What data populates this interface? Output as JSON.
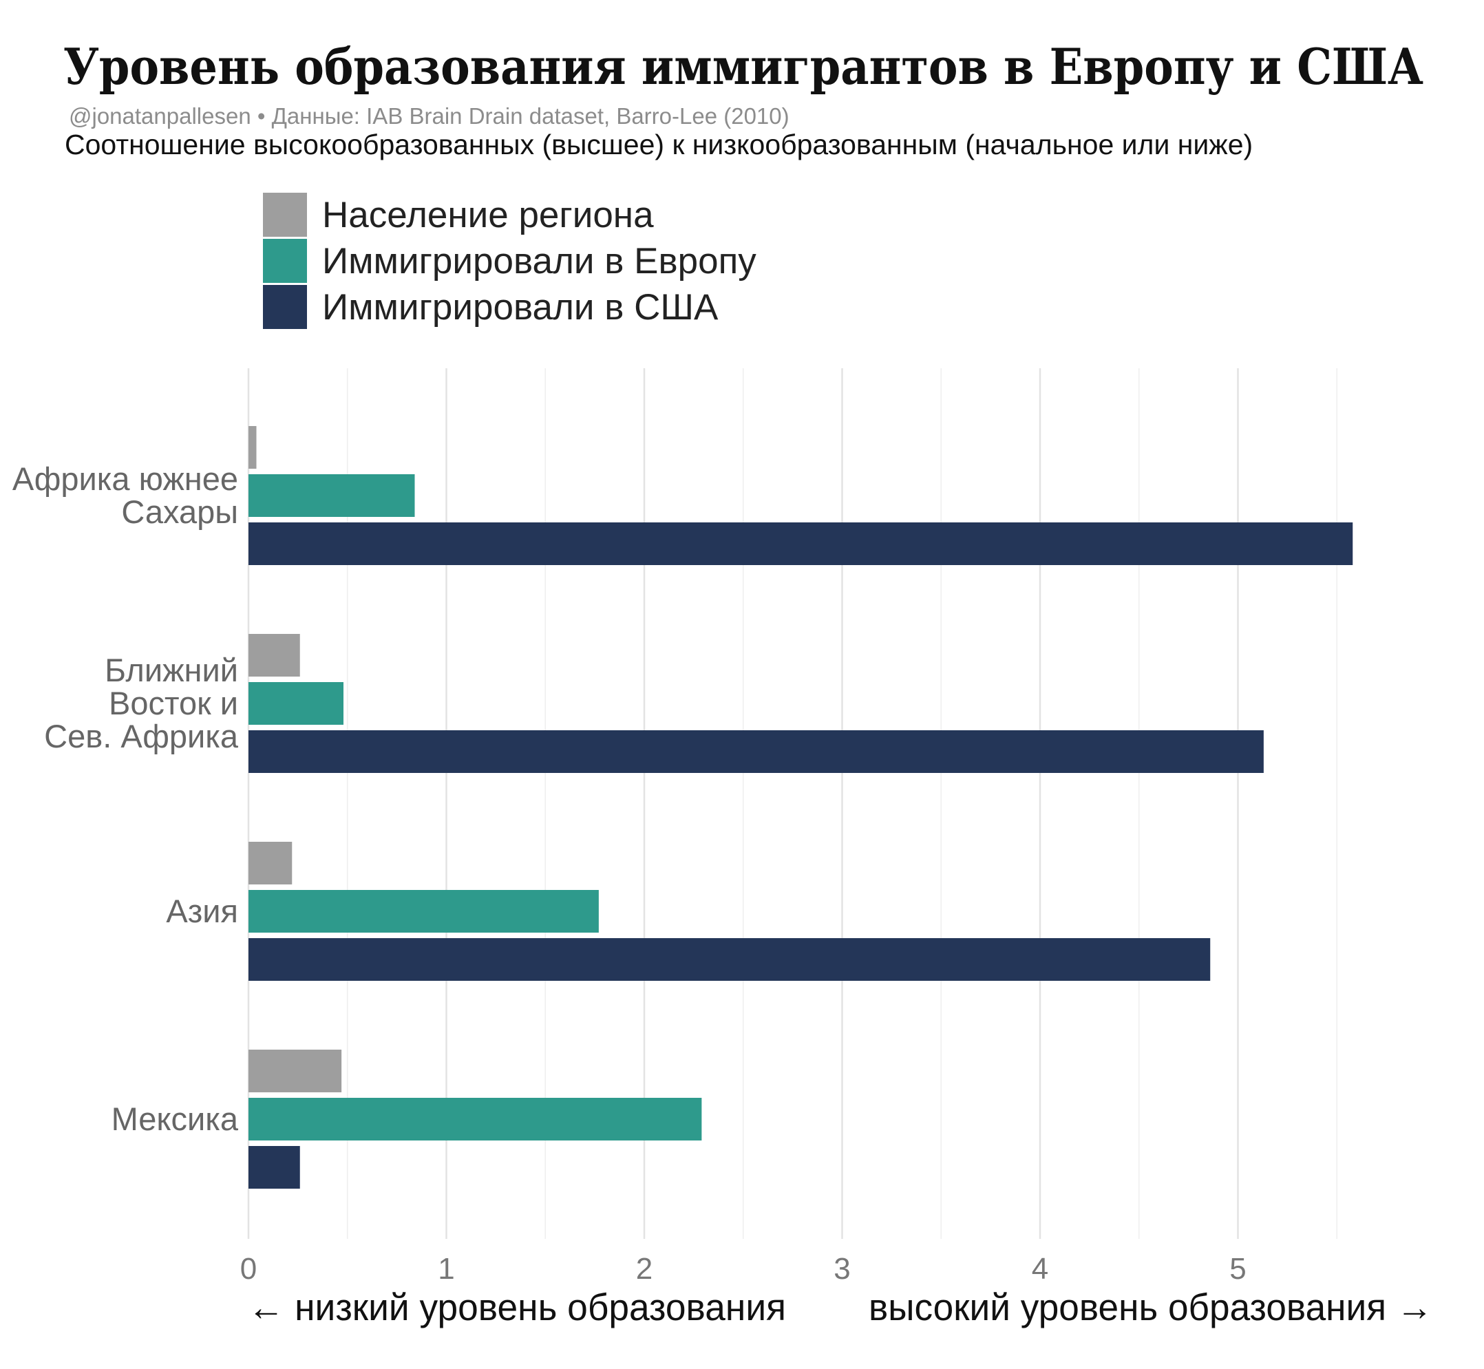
{
  "title": "Уровень образования иммигрантов в Европу и США",
  "caption": "@jonatanpallesen • Данные: IAB Brain Drain dataset, Barro-Lee (2010)",
  "subtitle": "Соотношение высокообразованных (высшее) к низкообразованным (начальное или ниже)",
  "axis_notes": {
    "left": "← низкий уровень образования",
    "right": "высокий уровень образования →"
  },
  "chart_data": {
    "type": "bar",
    "orientation": "horizontal",
    "categories": [
      [
        "Африка южнее",
        "Сахары"
      ],
      [
        "Ближний",
        "Восток и",
        "Сев. Африка"
      ],
      [
        "Азия"
      ],
      [
        "Мексика"
      ]
    ],
    "series": [
      {
        "name": "Население региона",
        "color": "#9e9e9e",
        "values": [
          0.04,
          0.26,
          0.22,
          0.47
        ]
      },
      {
        "name": "Иммигрировали в Европу",
        "color": "#2e9a8c",
        "values": [
          0.84,
          0.48,
          1.77,
          2.29
        ]
      },
      {
        "name": "Иммигрировали в США",
        "color": "#243658",
        "values": [
          5.58,
          5.13,
          4.86,
          0.26
        ]
      }
    ],
    "x_ticks": [
      0,
      1,
      2,
      3,
      4,
      5
    ],
    "xlim": [
      0,
      5.75
    ],
    "grid": true,
    "legend_position": "top-left"
  }
}
